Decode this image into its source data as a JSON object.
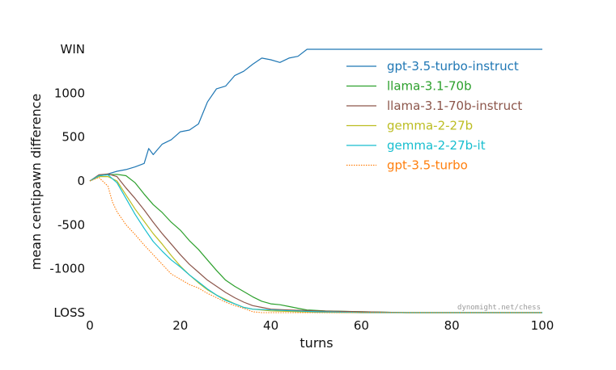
{
  "chart_data": {
    "type": "line",
    "xlabel": "turns",
    "ylabel": "mean centipawn difference",
    "xlim": [
      0,
      100
    ],
    "ylim": [
      -1500,
      1500
    ],
    "x_ticks": [
      0,
      20,
      40,
      60,
      80,
      100
    ],
    "y_ticks": [
      {
        "value": 1500,
        "label": "WIN"
      },
      {
        "value": 1000,
        "label": "1000"
      },
      {
        "value": 500,
        "label": "500"
      },
      {
        "value": 0,
        "label": "0"
      },
      {
        "value": -500,
        "label": "-500"
      },
      {
        "value": -1000,
        "label": "-1000"
      },
      {
        "value": -1500,
        "label": "LOSS"
      }
    ],
    "grid": false,
    "legend_position": "top-right",
    "watermark": "dynomight.net/chess",
    "series": [
      {
        "name": "gpt-3.5-turbo-instruct",
        "color": "#1f77b4",
        "dash": "solid",
        "points": [
          [
            0,
            0
          ],
          [
            2,
            60
          ],
          [
            4,
            80
          ],
          [
            6,
            110
          ],
          [
            8,
            130
          ],
          [
            10,
            160
          ],
          [
            12,
            200
          ],
          [
            13,
            370
          ],
          [
            14,
            300
          ],
          [
            16,
            420
          ],
          [
            18,
            470
          ],
          [
            20,
            560
          ],
          [
            22,
            580
          ],
          [
            24,
            650
          ],
          [
            26,
            900
          ],
          [
            28,
            1050
          ],
          [
            30,
            1080
          ],
          [
            32,
            1200
          ],
          [
            34,
            1250
          ],
          [
            36,
            1330
          ],
          [
            38,
            1400
          ],
          [
            40,
            1380
          ],
          [
            42,
            1350
          ],
          [
            44,
            1400
          ],
          [
            46,
            1420
          ],
          [
            48,
            1500
          ],
          [
            100,
            1500
          ]
        ]
      },
      {
        "name": "llama-3.1-70b",
        "color": "#2ca02c",
        "dash": "solid",
        "points": [
          [
            0,
            0
          ],
          [
            2,
            60
          ],
          [
            4,
            70
          ],
          [
            6,
            75
          ],
          [
            8,
            60
          ],
          [
            10,
            -20
          ],
          [
            12,
            -150
          ],
          [
            14,
            -270
          ],
          [
            16,
            -360
          ],
          [
            18,
            -470
          ],
          [
            20,
            -560
          ],
          [
            22,
            -680
          ],
          [
            24,
            -780
          ],
          [
            26,
            -900
          ],
          [
            28,
            -1020
          ],
          [
            30,
            -1130
          ],
          [
            32,
            -1200
          ],
          [
            34,
            -1260
          ],
          [
            36,
            -1320
          ],
          [
            38,
            -1370
          ],
          [
            40,
            -1400
          ],
          [
            42,
            -1410
          ],
          [
            44,
            -1430
          ],
          [
            46,
            -1450
          ],
          [
            48,
            -1470
          ],
          [
            52,
            -1480
          ],
          [
            60,
            -1490
          ],
          [
            70,
            -1500
          ],
          [
            100,
            -1500
          ]
        ]
      },
      {
        "name": "llama-3.1-70b-instruct",
        "color": "#8c564b",
        "dash": "solid",
        "points": [
          [
            0,
            0
          ],
          [
            2,
            70
          ],
          [
            4,
            80
          ],
          [
            6,
            50
          ],
          [
            8,
            -80
          ],
          [
            10,
            -200
          ],
          [
            12,
            -330
          ],
          [
            14,
            -470
          ],
          [
            16,
            -600
          ],
          [
            18,
            -720
          ],
          [
            20,
            -840
          ],
          [
            22,
            -950
          ],
          [
            24,
            -1040
          ],
          [
            26,
            -1130
          ],
          [
            28,
            -1200
          ],
          [
            30,
            -1270
          ],
          [
            32,
            -1330
          ],
          [
            34,
            -1380
          ],
          [
            36,
            -1420
          ],
          [
            38,
            -1440
          ],
          [
            40,
            -1460
          ],
          [
            44,
            -1470
          ],
          [
            50,
            -1480
          ],
          [
            60,
            -1490
          ],
          [
            70,
            -1500
          ],
          [
            100,
            -1500
          ]
        ]
      },
      {
        "name": "gemma-2-27b",
        "color": "#bcbd22",
        "dash": "solid",
        "points": [
          [
            0,
            0
          ],
          [
            2,
            50
          ],
          [
            4,
            50
          ],
          [
            6,
            0
          ],
          [
            8,
            -160
          ],
          [
            10,
            -320
          ],
          [
            12,
            -460
          ],
          [
            14,
            -600
          ],
          [
            16,
            -720
          ],
          [
            18,
            -850
          ],
          [
            20,
            -970
          ],
          [
            22,
            -1070
          ],
          [
            24,
            -1160
          ],
          [
            26,
            -1240
          ],
          [
            28,
            -1300
          ],
          [
            30,
            -1350
          ],
          [
            32,
            -1400
          ],
          [
            34,
            -1440
          ],
          [
            36,
            -1460
          ],
          [
            40,
            -1480
          ],
          [
            50,
            -1495
          ],
          [
            60,
            -1500
          ],
          [
            100,
            -1500
          ]
        ]
      },
      {
        "name": "gemma-2-27b-it",
        "color": "#17becf",
        "dash": "solid",
        "points": [
          [
            0,
            0
          ],
          [
            2,
            60
          ],
          [
            4,
            70
          ],
          [
            6,
            -20
          ],
          [
            8,
            -200
          ],
          [
            10,
            -380
          ],
          [
            12,
            -540
          ],
          [
            14,
            -690
          ],
          [
            16,
            -800
          ],
          [
            18,
            -900
          ],
          [
            20,
            -980
          ],
          [
            22,
            -1070
          ],
          [
            24,
            -1150
          ],
          [
            26,
            -1230
          ],
          [
            28,
            -1300
          ],
          [
            30,
            -1360
          ],
          [
            32,
            -1400
          ],
          [
            34,
            -1440
          ],
          [
            36,
            -1460
          ],
          [
            40,
            -1470
          ],
          [
            50,
            -1490
          ],
          [
            60,
            -1500
          ],
          [
            100,
            -1500
          ]
        ]
      },
      {
        "name": "gpt-3.5-turbo",
        "color": "#ff7f0e",
        "dash": "dotted",
        "points": [
          [
            0,
            0
          ],
          [
            2,
            40
          ],
          [
            4,
            -60
          ],
          [
            5,
            -240
          ],
          [
            6,
            -350
          ],
          [
            8,
            -500
          ],
          [
            10,
            -610
          ],
          [
            12,
            -730
          ],
          [
            14,
            -840
          ],
          [
            16,
            -950
          ],
          [
            18,
            -1060
          ],
          [
            20,
            -1120
          ],
          [
            22,
            -1180
          ],
          [
            24,
            -1220
          ],
          [
            26,
            -1280
          ],
          [
            28,
            -1330
          ],
          [
            30,
            -1380
          ],
          [
            32,
            -1420
          ],
          [
            34,
            -1450
          ],
          [
            36,
            -1490
          ],
          [
            38,
            -1500
          ],
          [
            100,
            -1500
          ]
        ]
      }
    ]
  }
}
